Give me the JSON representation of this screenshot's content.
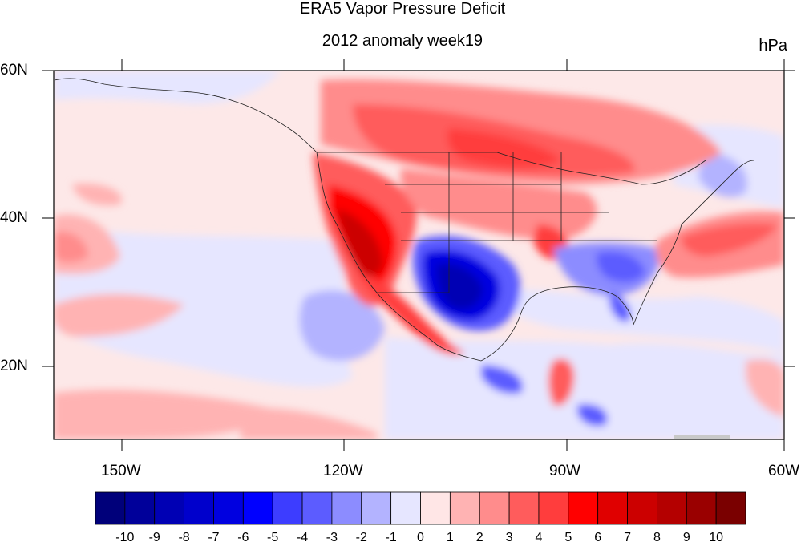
{
  "title": "ERA5 Vapor Pressure Deficit",
  "subtitle": "2012 anomaly week19",
  "units": "hPa",
  "axes": {
    "lat_labels": [
      "60N",
      "40N",
      "20N"
    ],
    "lon_labels": [
      "150W",
      "120W",
      "90W",
      "60W"
    ]
  },
  "colorbar": {
    "labels": [
      "-10",
      "-9",
      "-8",
      "-7",
      "-6",
      "-5",
      "-4",
      "-3",
      "-2",
      "-1",
      "0",
      "1",
      "2",
      "3",
      "4",
      "5",
      "6",
      "7",
      "8",
      "9",
      "10"
    ],
    "colors": [
      "#00007a",
      "#00009a",
      "#0000b4",
      "#0000cc",
      "#0000e0",
      "#0000ff",
      "#3d3dff",
      "#5c5cff",
      "#8c8cff",
      "#b3b3ff",
      "#e6e6ff",
      "#ffe6e6",
      "#ffb3b3",
      "#ff8c8c",
      "#ff5c5c",
      "#ff3d3d",
      "#ff0000",
      "#e00000",
      "#cc0000",
      "#b40000",
      "#9a0000",
      "#7a0000"
    ]
  },
  "map": {
    "region": "North America / North-East Pacific",
    "lat_range": [
      10,
      60
    ],
    "lon_range": [
      -160,
      -60
    ],
    "features": [
      {
        "name": "western-us-positive-anomaly",
        "sign": "positive",
        "peak": 9
      },
      {
        "name": "northern-plains-positive-anomaly",
        "sign": "positive",
        "peak": 6
      },
      {
        "name": "canada-positive-anomaly",
        "sign": "positive",
        "peak": 5
      },
      {
        "name": "texas-negative-anomaly",
        "sign": "negative",
        "peak": -8
      },
      {
        "name": "southeast-negative-anomaly",
        "sign": "negative",
        "peak": -4
      },
      {
        "name": "atlantic-positive-anomaly",
        "sign": "positive",
        "peak": 4
      },
      {
        "name": "pacific-negative-anomaly",
        "sign": "negative",
        "peak": -2
      }
    ]
  }
}
